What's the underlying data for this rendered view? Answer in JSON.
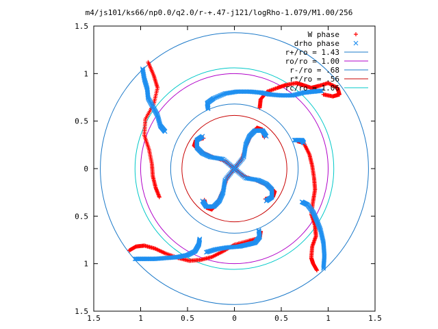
{
  "chart_data": {
    "type": "scatter",
    "title": "m4/js101/ks66/np0.0/q2.0/r-+.47-j121/logRho-1.079/M1.00/256",
    "xlabel": "",
    "ylabel": "",
    "xlim": [
      -1.5,
      1.5
    ],
    "ylim": [
      -1.5,
      1.5
    ],
    "grid": false,
    "legend_position": "top-right",
    "x_ticks": [
      -1.5,
      -1,
      -0.5,
      0,
      0.5,
      1,
      1.5
    ],
    "y_ticks": [
      -1.5,
      -1,
      -0.5,
      0,
      0.5,
      1,
      1.5
    ],
    "x_tick_labels": [
      "1.5",
      "1",
      "0.5",
      "0",
      "0.5",
      "1",
      "1.5"
    ],
    "y_tick_labels": [
      "1.5",
      "1",
      "0.5",
      "0",
      "0.5",
      "1",
      "1.5"
    ],
    "series": [
      {
        "name": "W phase",
        "marker": "plus",
        "color": "#ff0000",
        "arms": [
          [
            [
              0,
              0
            ],
            [
              0.08,
              0.1
            ],
            [
              0.13,
              0.25
            ],
            [
              0.18,
              0.36
            ],
            [
              0.24,
              0.43
            ],
            [
              0.3,
              0.41
            ],
            [
              0.32,
              0.33
            ]
          ],
          [
            [
              0,
              0
            ],
            [
              0.1,
              -0.08
            ],
            [
              0.25,
              -0.13
            ],
            [
              0.36,
              -0.18
            ],
            [
              0.43,
              -0.24
            ],
            [
              0.41,
              -0.3
            ],
            [
              0.33,
              -0.32
            ]
          ],
          [
            [
              0,
              0
            ],
            [
              -0.08,
              -0.1
            ],
            [
              -0.13,
              -0.25
            ],
            [
              -0.18,
              -0.36
            ],
            [
              -0.24,
              -0.43
            ],
            [
              -0.3,
              -0.41
            ],
            [
              -0.32,
              -0.33
            ]
          ],
          [
            [
              0,
              0
            ],
            [
              -0.1,
              0.08
            ],
            [
              -0.25,
              0.13
            ],
            [
              -0.36,
              0.18
            ],
            [
              -0.43,
              0.24
            ],
            [
              -0.41,
              0.3
            ],
            [
              -0.33,
              0.32
            ]
          ],
          [
            [
              -0.92,
              1.12
            ],
            [
              -0.86,
              0.98
            ],
            [
              -0.82,
              0.85
            ],
            [
              -0.86,
              0.68
            ],
            [
              -0.95,
              0.52
            ],
            [
              -0.96,
              0.35
            ],
            [
              -0.91,
              0.2
            ],
            [
              -0.88,
              0.05
            ],
            [
              -0.87,
              -0.08
            ],
            [
              -0.84,
              -0.2
            ],
            [
              -0.8,
              -0.3
            ]
          ],
          [
            [
              0.27,
              0.64
            ],
            [
              0.28,
              0.73
            ],
            [
              0.35,
              0.81
            ],
            [
              0.46,
              0.85
            ],
            [
              0.55,
              0.88
            ],
            [
              0.66,
              0.9
            ],
            [
              0.73,
              0.88
            ],
            [
              0.82,
              0.85
            ],
            [
              0.9,
              0.87
            ],
            [
              1.0,
              0.9
            ],
            [
              1.1,
              0.85
            ],
            [
              1.12,
              0.78
            ],
            [
              1.05,
              0.76
            ],
            [
              0.95,
              0.78
            ]
          ],
          [
            [
              0.67,
              0.29
            ],
            [
              0.74,
              0.27
            ],
            [
              0.8,
              0.15
            ],
            [
              0.83,
              0.03
            ],
            [
              0.85,
              -0.1
            ],
            [
              0.86,
              -0.22
            ],
            [
              0.84,
              -0.34
            ],
            [
              0.82,
              -0.48
            ],
            [
              0.86,
              -0.6
            ],
            [
              0.87,
              -0.71
            ],
            [
              0.83,
              -0.82
            ],
            [
              0.82,
              -0.94
            ],
            [
              0.84,
              -1.0
            ],
            [
              0.88,
              -1.07
            ]
          ],
          [
            [
              -1.12,
              -0.86
            ],
            [
              -1.05,
              -0.82
            ],
            [
              -0.96,
              -0.81
            ],
            [
              -0.85,
              -0.84
            ],
            [
              -0.74,
              -0.89
            ],
            [
              -0.6,
              -0.94
            ],
            [
              -0.48,
              -0.97
            ],
            [
              -0.36,
              -0.96
            ],
            [
              -0.24,
              -0.93
            ],
            [
              -0.12,
              -0.87
            ],
            [
              0.0,
              -0.8
            ],
            [
              0.15,
              -0.76
            ],
            [
              0.27,
              -0.73
            ],
            [
              0.28,
              -0.66
            ]
          ]
        ]
      },
      {
        "name": "drho phase",
        "marker": "cross",
        "color": "#1e8ff0",
        "arms": [
          [
            [
              0,
              0
            ],
            [
              0.1,
              0.12
            ],
            [
              0.12,
              0.25
            ],
            [
              0.16,
              0.34
            ],
            [
              0.22,
              0.4
            ],
            [
              0.3,
              0.4
            ],
            [
              0.34,
              0.34
            ]
          ],
          [
            [
              0,
              0
            ],
            [
              0.12,
              -0.1
            ],
            [
              0.25,
              -0.12
            ],
            [
              0.34,
              -0.16
            ],
            [
              0.4,
              -0.22
            ],
            [
              0.4,
              -0.3
            ],
            [
              0.34,
              -0.34
            ]
          ],
          [
            [
              0,
              0
            ],
            [
              -0.1,
              -0.12
            ],
            [
              -0.12,
              -0.25
            ],
            [
              -0.16,
              -0.34
            ],
            [
              -0.22,
              -0.4
            ],
            [
              -0.3,
              -0.4
            ],
            [
              -0.34,
              -0.34
            ]
          ],
          [
            [
              0,
              0
            ],
            [
              -0.12,
              0.1
            ],
            [
              -0.25,
              0.12
            ],
            [
              -0.34,
              0.16
            ],
            [
              -0.4,
              0.22
            ],
            [
              -0.4,
              0.3
            ],
            [
              -0.34,
              0.34
            ]
          ],
          [
            [
              -0.98,
              1.05
            ],
            [
              -0.96,
              0.94
            ],
            [
              -0.93,
              0.84
            ],
            [
              -0.92,
              0.74
            ],
            [
              -0.87,
              0.65
            ],
            [
              -0.82,
              0.56
            ],
            [
              -0.79,
              0.45
            ],
            [
              -0.74,
              0.39
            ]
          ],
          [
            [
              -0.28,
              0.63
            ],
            [
              -0.29,
              0.69
            ],
            [
              -0.22,
              0.74
            ],
            [
              -0.1,
              0.79
            ],
            [
              0.03,
              0.81
            ],
            [
              0.16,
              0.81
            ],
            [
              0.28,
              0.8
            ],
            [
              0.38,
              0.78
            ],
            [
              0.5,
              0.77
            ],
            [
              0.62,
              0.77
            ],
            [
              0.74,
              0.8
            ],
            [
              0.84,
              0.81
            ],
            [
              0.93,
              0.82
            ]
          ],
          [
            [
              0.64,
              0.3
            ],
            [
              0.72,
              0.3
            ],
            [
              0.74,
              0.27
            ]
          ],
          [
            [
              0.72,
              -0.35
            ],
            [
              0.78,
              -0.38
            ],
            [
              0.84,
              -0.46
            ],
            [
              0.88,
              -0.55
            ],
            [
              0.92,
              -0.65
            ],
            [
              0.95,
              -0.78
            ],
            [
              0.96,
              -0.92
            ],
            [
              0.95,
              -1.05
            ]
          ],
          [
            [
              -1.06,
              -0.95
            ],
            [
              -0.95,
              -0.95
            ],
            [
              -0.85,
              -0.95
            ],
            [
              -0.72,
              -0.94
            ],
            [
              -0.6,
              -0.93
            ],
            [
              -0.5,
              -0.91
            ],
            [
              -0.42,
              -0.87
            ],
            [
              -0.38,
              -0.8
            ],
            [
              -0.37,
              -0.74
            ]
          ],
          [
            [
              0.26,
              -0.65
            ],
            [
              0.27,
              -0.72
            ],
            [
              0.22,
              -0.78
            ],
            [
              0.14,
              -0.8
            ],
            [
              0.05,
              -0.82
            ],
            [
              -0.08,
              -0.83
            ],
            [
              -0.2,
              -0.85
            ],
            [
              -0.3,
              -0.88
            ]
          ]
        ]
      }
    ],
    "circles": [
      {
        "name": "r+/ro = 1.43",
        "r": 1.43,
        "color": "#1a78c8"
      },
      {
        "name": "ro/ro = 1.00",
        "r": 1.0,
        "color": "#b000c8"
      },
      {
        "name": "r-/ro = .68",
        "r": 0.68,
        "color": "#1a78c8"
      },
      {
        "name": "r*/ro = .56",
        "r": 0.56,
        "color": "#c80000"
      },
      {
        "name": "rc/ro = 1.06",
        "r": 1.06,
        "color": "#00c8c8"
      }
    ]
  }
}
